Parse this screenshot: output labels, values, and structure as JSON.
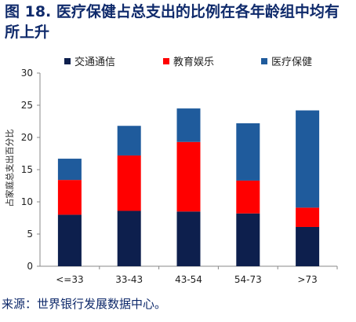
{
  "title": "图 18. 医疗保健占总支出的比例在各年龄组中均有所上升",
  "source": "来源：世界银行发展数据中心。",
  "chart_data": {
    "type": "bar",
    "stacked": true,
    "categories": [
      "<=33",
      "33-43",
      "43-54",
      "54-73",
      ">73"
    ],
    "series": [
      {
        "name": "交通通信",
        "color": "#0d1f4d",
        "values": [
          8.0,
          8.6,
          8.5,
          8.2,
          6.1
        ]
      },
      {
        "name": "教育娱乐",
        "color": "#ff0000",
        "values": [
          5.4,
          8.6,
          10.8,
          5.1,
          3.0
        ]
      },
      {
        "name": "医疗保健",
        "color": "#1f5b9c",
        "values": [
          3.3,
          4.6,
          5.2,
          8.9,
          15.1
        ]
      }
    ],
    "ylabel": "占家庭总支出百分比",
    "ylim": [
      0,
      30
    ],
    "yticks": [
      "0",
      "5",
      "10",
      "15",
      "20",
      "25",
      "30"
    ],
    "grid": false,
    "legend_position": "top"
  }
}
